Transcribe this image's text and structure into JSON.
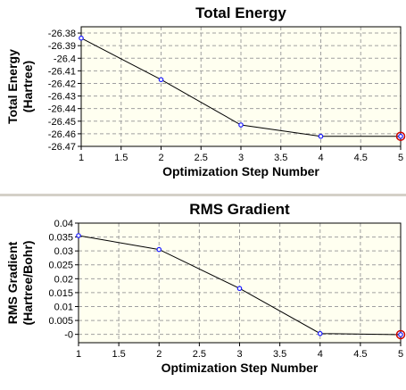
{
  "chart_data": [
    {
      "type": "line",
      "title": "Total Energy",
      "xlabel": "Optimization Step Number",
      "ylabel": [
        "Total Energy",
        "(Hartree)"
      ],
      "x": [
        1,
        2,
        3,
        4,
        5
      ],
      "y": [
        -26.384,
        -26.417,
        -26.453,
        -26.462,
        -26.462
      ],
      "xlim": [
        1,
        5
      ],
      "ylim": [
        -26.47,
        -26.375
      ],
      "xticks": [
        "1",
        "1.5",
        "2",
        "2.5",
        "3",
        "3.5",
        "4",
        "4.5",
        "5"
      ],
      "yticks": [
        "-26.38",
        "-26.39",
        "-26.4",
        "-26.41",
        "-26.42",
        "-26.43",
        "-26.44",
        "-26.45",
        "-26.46",
        "-26.47"
      ],
      "grid": true,
      "highlight_last_point": true,
      "colors": {
        "plot_bg": "#fffff0",
        "line": "#000000",
        "marker": "#1a1aff",
        "highlight": "#cc0000",
        "grid": "#a0a0a0"
      }
    },
    {
      "type": "line",
      "title": "RMS Gradient",
      "xlabel": "Optimization Step Number",
      "ylabel": [
        "RMS Gradient",
        "(Hartree/Bohr)"
      ],
      "x": [
        1,
        2,
        3,
        4,
        5
      ],
      "y": [
        0.0355,
        0.0305,
        0.0165,
        0.0003,
        -0.0001
      ],
      "xlim": [
        1,
        5
      ],
      "ylim": [
        -0.003,
        0.04
      ],
      "xticks": [
        "1",
        "1.5",
        "2",
        "2.5",
        "3",
        "3.5",
        "4",
        "4.5",
        "5"
      ],
      "yticks": [
        "0.04",
        "0.035",
        "0.03",
        "0.025",
        "0.02",
        "0.015",
        "0.01",
        "0.005",
        "-0"
      ],
      "grid": true,
      "highlight_last_point": true,
      "colors": {
        "plot_bg": "#fffff0",
        "line": "#000000",
        "marker": "#1a1aff",
        "highlight": "#cc0000",
        "grid": "#a0a0a0"
      }
    }
  ]
}
